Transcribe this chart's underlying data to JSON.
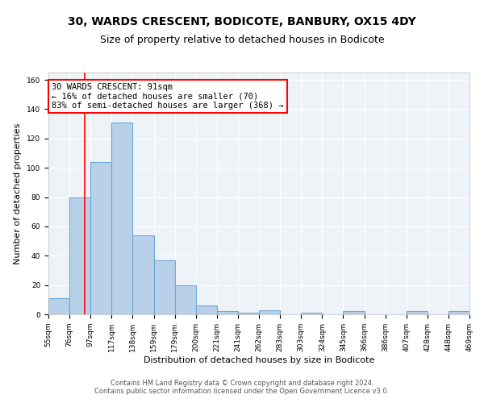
{
  "title": "30, WARDS CRESCENT, BODICOTE, BANBURY, OX15 4DY",
  "subtitle": "Size of property relative to detached houses in Bodicote",
  "xlabel": "Distribution of detached houses by size in Bodicote",
  "ylabel": "Number of detached properties",
  "bar_values": [
    11,
    80,
    104,
    131,
    54,
    37,
    20,
    6,
    2,
    1,
    3,
    0,
    1,
    0,
    2,
    0,
    0,
    2,
    0,
    2
  ],
  "bin_labels": [
    "55sqm",
    "76sqm",
    "97sqm",
    "117sqm",
    "138sqm",
    "159sqm",
    "179sqm",
    "200sqm",
    "221sqm",
    "241sqm",
    "262sqm",
    "283sqm",
    "303sqm",
    "324sqm",
    "345sqm",
    "366sqm",
    "386sqm",
    "407sqm",
    "428sqm",
    "448sqm",
    "469sqm"
  ],
  "bar_color": "#b8d0e8",
  "bar_edge_color": "#6fa8d6",
  "bar_edge_width": 0.8,
  "red_line_x": 1.73,
  "annotation_text": "30 WARDS CRESCENT: 91sqm\n← 16% of detached houses are smaller (70)\n83% of semi-detached houses are larger (368) →",
  "annotation_box_color": "white",
  "annotation_box_edge_color": "red",
  "ylim": [
    0,
    165
  ],
  "yticks": [
    0,
    20,
    40,
    60,
    80,
    100,
    120,
    140,
    160
  ],
  "background_color": "#eef3f8",
  "grid_color": "white",
  "footer_text": "Contains HM Land Registry data © Crown copyright and database right 2024.\nContains public sector information licensed under the Open Government Licence v3.0.",
  "title_fontsize": 10,
  "subtitle_fontsize": 9,
  "label_fontsize": 8,
  "tick_fontsize": 6.5,
  "annotation_fontsize": 7.5,
  "footer_fontsize": 6
}
